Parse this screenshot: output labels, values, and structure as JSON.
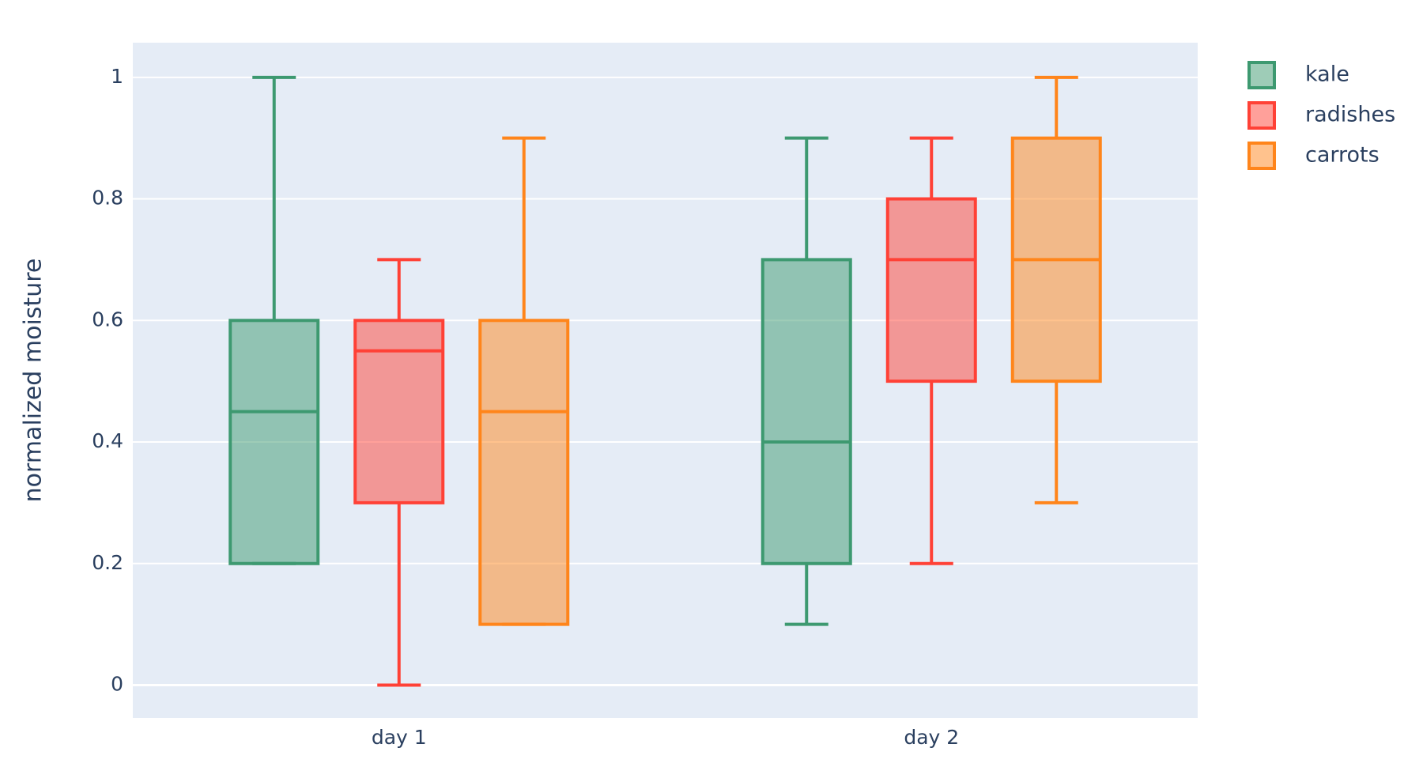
{
  "chart_data": {
    "type": "box",
    "y_label": "normalized moisture",
    "categories": [
      "day 1",
      "day 2"
    ],
    "series": [
      {
        "name": "kale",
        "color": "#3D9970",
        "min": [
          0.2,
          0.1
        ],
        "q1": [
          0.2,
          0.2
        ],
        "median": [
          0.45,
          0.4
        ],
        "q3": [
          0.6,
          0.7
        ],
        "max": [
          1.0,
          0.9
        ]
      },
      {
        "name": "radishes",
        "color": "#FF4136",
        "min": [
          0,
          0.2
        ],
        "q1": [
          0.3,
          0.5
        ],
        "median": [
          0.55,
          0.7
        ],
        "q3": [
          0.6,
          0.8
        ],
        "max": [
          0.7,
          0.9
        ]
      },
      {
        "name": "carrots",
        "color": "#FF851B",
        "min": [
          0.1,
          0.3
        ],
        "q1": [
          0.1,
          0.5
        ],
        "median": [
          0.45,
          0.7
        ],
        "q3": [
          0.6,
          0.9
        ],
        "max": [
          0.9,
          1.0
        ]
      }
    ],
    "ylim": [
      -0.054,
      1.057
    ],
    "yticks": [
      0,
      0.2,
      0.4,
      0.6,
      0.8,
      1
    ],
    "grid": true,
    "legend": "right"
  }
}
